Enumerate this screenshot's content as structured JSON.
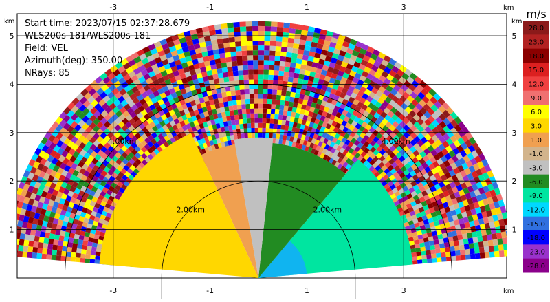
{
  "info": {
    "start_time": "Start time: 2023/07/15 02:37:28.679",
    "scan": "WLS200s-181/WLS200s-181",
    "field": "Field: VEL",
    "azimuth": "Azimuth(deg): 350.00",
    "nrays": "NRays: 85"
  },
  "axis_unit": "km",
  "chart_data": {
    "type": "heatmap",
    "projection": "RHI (range-height cross-section)",
    "field": "VEL",
    "azimuth_deg": 350.0,
    "nrays": 85,
    "xlim": [
      -5,
      5
    ],
    "ylim": [
      0,
      6
    ],
    "x_ticks": [
      -3,
      -1,
      1,
      3
    ],
    "y_ticks": [
      1,
      2,
      3,
      4,
      5
    ],
    "x_unit": "km",
    "y_unit": "km",
    "grid": true,
    "range_rings": [
      {
        "range_km": 2.0,
        "label": "2.00km"
      },
      {
        "range_km": 4.0,
        "label": "4.00km"
      }
    ],
    "elevation_range_deg": [
      5,
      175
    ],
    "max_range_km": 5.2,
    "velocity_sectors": [
      {
        "elev_from_deg": 5,
        "elev_to_deg": 50,
        "range_to_km": 3.2,
        "velocity_ms": -8.0,
        "color": "#00e5a0"
      },
      {
        "elev_from_deg": 5,
        "elev_to_deg": 50,
        "range_to_km": 1.0,
        "velocity_ms": -9.5,
        "color": "#10b4f0"
      },
      {
        "elev_from_deg": 50,
        "elev_to_deg": 84,
        "range_to_km": 2.8,
        "velocity_ms": -2.0,
        "color": "#228b22"
      },
      {
        "elev_from_deg": 84,
        "elev_to_deg": 100,
        "range_to_km": 2.9,
        "velocity_ms": 0.0,
        "color": "#c0c0c0"
      },
      {
        "elev_from_deg": 100,
        "elev_to_deg": 115,
        "range_to_km": 2.8,
        "velocity_ms": 2.0,
        "color": "#f0a050"
      },
      {
        "elev_from_deg": 115,
        "elev_to_deg": 175,
        "range_to_km": 3.3,
        "velocity_ms": 6.0,
        "color": "#ffd700"
      }
    ],
    "colorbar": {
      "title": "m/s",
      "labels": [
        "28.0",
        "23.0",
        "18.0",
        "15.0",
        "12.0",
        "9.0",
        "6.0",
        "3.0",
        "1.0",
        "-1.0",
        "-3.0",
        "-6.0",
        "-9.0",
        "-12.0",
        "-15.0",
        "-18.0",
        "-23.0",
        "-28.0"
      ],
      "colors": [
        "#8b1a1a",
        "#b22222",
        "#8b0000",
        "#dc2020",
        "#f04040",
        "#f07070",
        "#ffff00",
        "#ffd700",
        "#f0a050",
        "#d2b48c",
        "#c0c0c0",
        "#228b22",
        "#00e5a0",
        "#00d8ff",
        "#3070e0",
        "#0000ff",
        "#9932cc",
        "#8b008b"
      ]
    }
  }
}
